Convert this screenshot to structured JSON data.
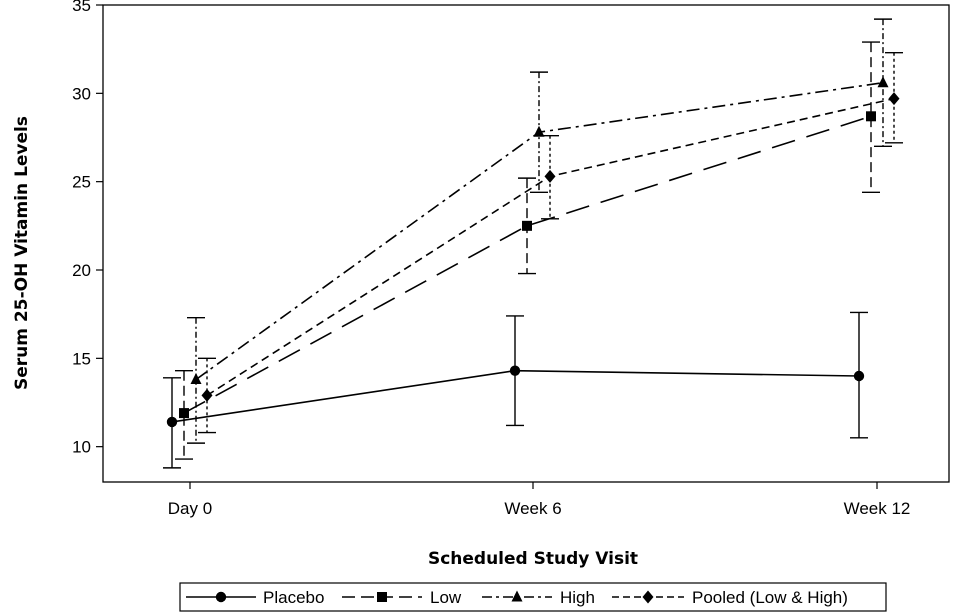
{
  "chart_data": {
    "type": "line",
    "title": "",
    "xlabel": "Scheduled Study Visit",
    "ylabel": "Serum 25-OH Vitamin Levels",
    "categories": [
      "Day 0",
      "Week 6",
      "Week 12"
    ],
    "ylim": [
      8,
      35
    ],
    "yticks": [
      10,
      15,
      20,
      25,
      30,
      35
    ],
    "grid": false,
    "legend_position": "bottom",
    "series": [
      {
        "name": "Placebo",
        "marker": "circle",
        "dash": "solid",
        "values": [
          11.4,
          14.3,
          14.0
        ],
        "lower": [
          8.8,
          11.2,
          10.5
        ],
        "upper": [
          13.9,
          17.4,
          17.6
        ]
      },
      {
        "name": "Low",
        "marker": "square",
        "dash": "long-dash",
        "values": [
          11.9,
          22.5,
          28.7
        ],
        "lower": [
          9.3,
          19.8,
          24.4
        ],
        "upper": [
          14.3,
          25.2,
          32.9
        ]
      },
      {
        "name": "High",
        "marker": "triangle",
        "dash": "dash-dot",
        "values": [
          13.8,
          27.8,
          30.6
        ],
        "lower": [
          10.2,
          24.4,
          27.0
        ],
        "upper": [
          17.3,
          31.2,
          34.2
        ]
      },
      {
        "name": "Pooled (Low & High)",
        "marker": "diamond",
        "dash": "dash",
        "values": [
          12.9,
          25.3,
          29.7
        ],
        "lower": [
          10.8,
          22.9,
          27.2
        ],
        "upper": [
          15.0,
          27.6,
          32.3
        ]
      }
    ]
  }
}
